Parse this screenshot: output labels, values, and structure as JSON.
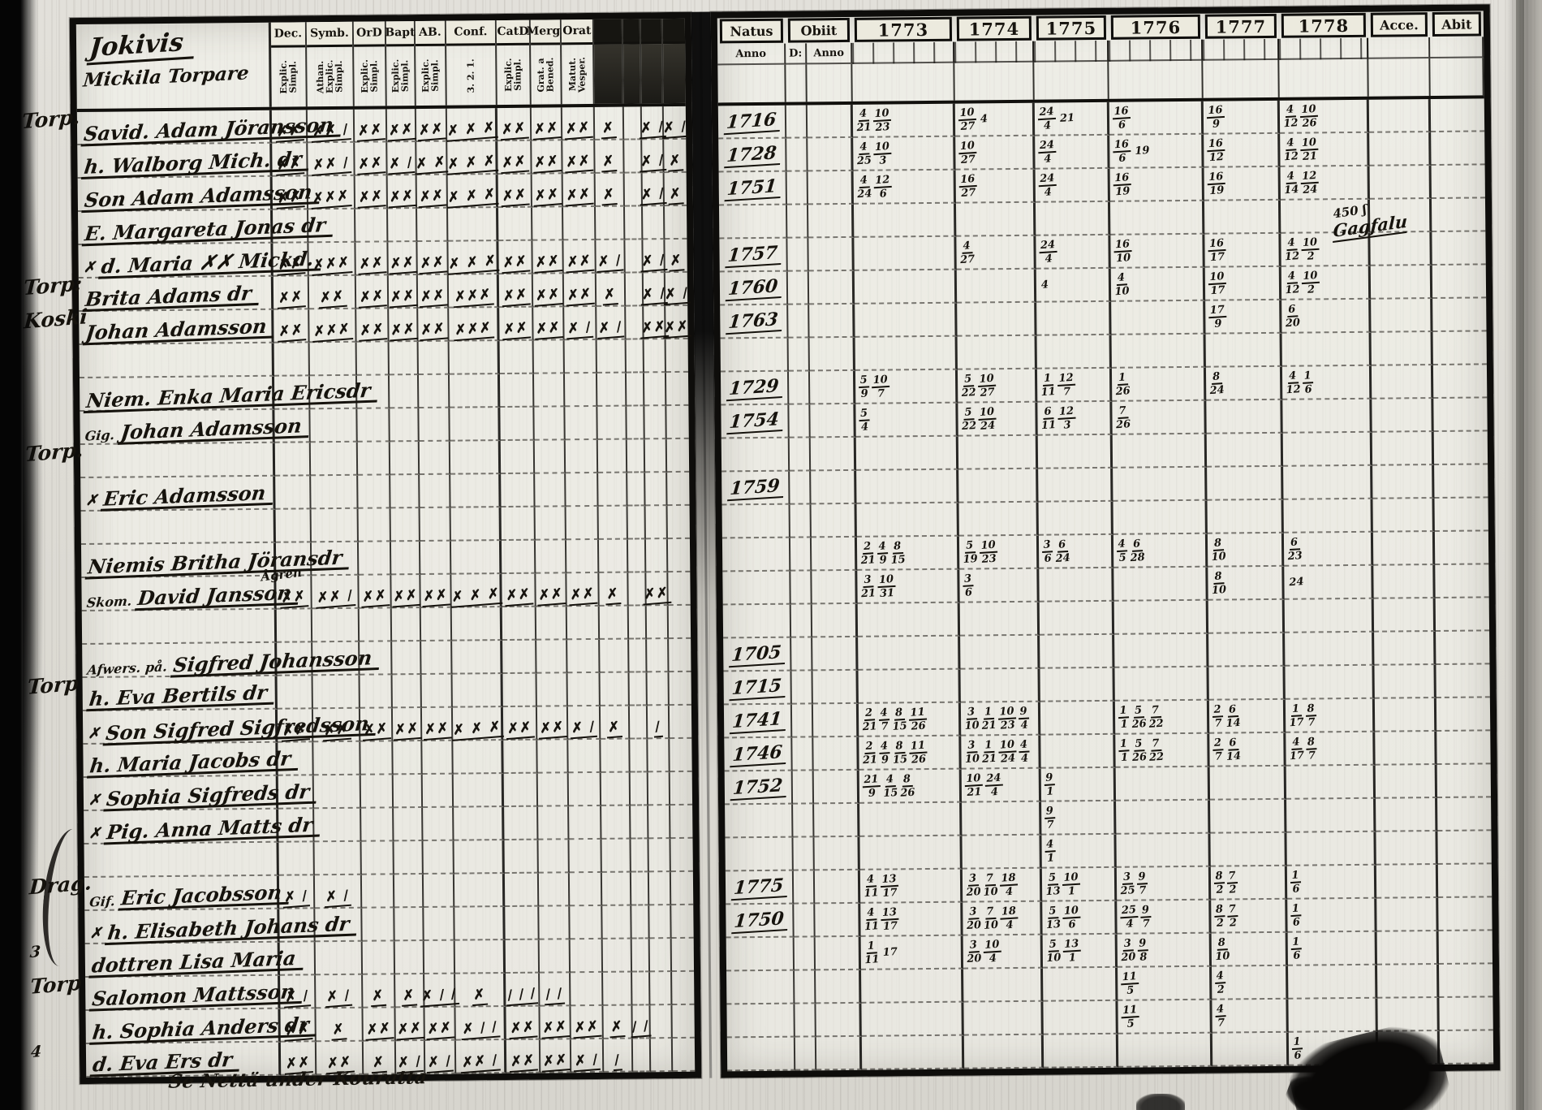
{
  "place_header": {
    "line1": "Jokivis",
    "line2": "Mickila Torpare"
  },
  "footer_note": "Se Nettä under Kouratta",
  "ink_color": "#15120c",
  "paper_color": "#dedcd5",
  "left_columns": [
    {
      "label": "Dec.",
      "sub": "Explic. Simpl."
    },
    {
      "label": "Symb.",
      "sub": "Athan. Explic. Simpl."
    },
    {
      "label": "OrD",
      "sub": "Explic. Simpl."
    },
    {
      "label": "Bapt",
      "sub": "Explic. Simpl."
    },
    {
      "label": "AB.",
      "sub": "Explic. Simpl."
    },
    {
      "label": "Conf.",
      "sub": "3. 2. 1."
    },
    {
      "label": "CatD",
      "sub": "Explic. Simpl."
    },
    {
      "label": "Merg.",
      "sub": "Grat. a Bened."
    },
    {
      "label": "Orat",
      "sub": "Matut. Vesper."
    },
    {
      "label": "",
      "sub": "",
      "blot": true
    },
    {
      "label": "",
      "sub": "",
      "blot": true
    },
    {
      "label": "",
      "sub": "",
      "blot": true
    },
    {
      "label": "",
      "sub": "",
      "blot": true
    }
  ],
  "right_columns": {
    "natus_label": "Natus",
    "natus_sub": "Anno",
    "obiit_label": "Obiit",
    "obiit_subs": [
      "D:",
      "Anno"
    ],
    "years": [
      "1773",
      "1774",
      "1775",
      "1776",
      "1777",
      "1778"
    ],
    "acce_label": "Acce.",
    "abit_label": "Abit"
  },
  "rows": [
    {
      "g": "Torp.",
      "n": "Savid. Adam Jöransson",
      "b": "1716",
      "m": [
        "✗✗",
        "✗✗ /",
        "✗✗",
        "✗✗",
        "✗✗",
        "✗ ✗ ✗",
        "✗✗",
        "✗✗",
        "✗✗",
        "✗",
        "",
        "✗ /",
        "✗ /"
      ],
      "y": [
        [
          "4/21",
          "10/23"
        ],
        [
          "10/27",
          "4"
        ],
        [
          "24/4",
          "21"
        ],
        [
          "16/6"
        ],
        [
          "16/9"
        ],
        [
          "4/12",
          "10/26"
        ]
      ]
    },
    {
      "n": "h. Walborg Mich. dr",
      "b": "1728",
      "m": [
        "✗✗",
        "✗✗ /",
        "✗✗",
        "✗ /",
        "✗ ✗",
        "✗ ✗ ✗",
        "✗✗",
        "✗✗",
        "✗✗",
        "✗",
        "",
        "✗ /",
        "✗"
      ],
      "y": [
        [
          "4/25",
          "10/3"
        ],
        [
          "10/27"
        ],
        [
          "24/4"
        ],
        [
          "16/6",
          "19"
        ],
        [
          "16/12"
        ],
        [
          "4/12",
          "10/21"
        ]
      ]
    },
    {
      "n": "Son Adam Adamsson",
      "b": "1751",
      "m": [
        "✗✗",
        "✗✗✗",
        "✗✗",
        "✗✗",
        "✗✗",
        "✗ ✗ ✗",
        "✗✗",
        "✗✗",
        "✗✗",
        "✗",
        "",
        "✗ /",
        "✗"
      ],
      "y": [
        [
          "4/24",
          "12/6"
        ],
        [
          "16/27"
        ],
        [
          "24/4"
        ],
        [
          "16/19"
        ],
        [
          "16/19"
        ],
        [
          "4/14",
          "12/24"
        ]
      ]
    },
    {
      "n": "E. Margareta Jonas dr",
      "m": [
        "",
        "",
        "",
        "",
        "",
        "",
        "",
        "",
        "",
        "",
        "",
        "",
        ""
      ],
      "y": [
        [],
        [],
        [],
        [],
        [],
        []
      ],
      "an": [
        "450 ʃ",
        "Gagfalu"
      ]
    },
    {
      "x": "✗",
      "n": "d. Maria ✗✗ Mickd.",
      "b": "1757",
      "m": [
        "✗✗",
        "✗✗✗",
        "✗✗",
        "✗✗",
        "✗✗",
        "✗ ✗ ✗",
        "✗✗",
        "✗✗",
        "✗✗",
        "✗ /",
        "",
        "✗ /",
        "✗"
      ],
      "y": [
        [],
        [
          "4/27"
        ],
        [
          "24/4"
        ],
        [
          "16/10"
        ],
        [
          "16/17"
        ],
        [
          "4/12",
          "10/2"
        ]
      ]
    },
    {
      "g": "Torp:",
      "n": "Brita Adams dr",
      "b": "1760",
      "m": [
        "✗✗",
        "✗✗",
        "✗✗",
        "✗✗",
        "✗✗",
        "✗✗✗",
        "✗✗",
        "✗✗",
        "✗✗",
        "✗",
        "",
        "✗ /",
        "✗ /"
      ],
      "y": [
        [],
        [],
        [
          "4"
        ],
        [
          "4/10"
        ],
        [
          "10/17"
        ],
        [
          "4/12",
          "10/2"
        ]
      ]
    },
    {
      "g": "Koski",
      "n": "Johan Adamsson",
      "b": "1763",
      "m": [
        "✗✗",
        "✗✗✗",
        "✗✗",
        "✗✗",
        "✗✗",
        "✗✗✗",
        "✗✗",
        "✗✗",
        "✗ /",
        "✗ /",
        "",
        "✗✗",
        "✗✗"
      ],
      "y": [
        [],
        [],
        [],
        [],
        [
          "17/9"
        ],
        [
          "6/20"
        ]
      ]
    },
    {},
    {
      "n": "Niem. Enka Maria Ericsdr",
      "b": "1729",
      "y": [
        [
          "5/9",
          "10/7"
        ],
        [
          "5/22",
          "10/27"
        ],
        [
          "1/11",
          "12/7"
        ],
        [
          "1/26"
        ],
        [
          "8/24"
        ],
        [
          "4/12",
          "1/6"
        ]
      ]
    },
    {
      "p": "Gig.",
      "n": "Johan Adamsson",
      "b": "1754",
      "y": [
        [
          "5/4"
        ],
        [
          "5/22",
          "10/24"
        ],
        [
          "6/11",
          "12/3"
        ],
        [
          "7/26"
        ],
        [],
        []
      ]
    },
    {
      "g": "Torp."
    },
    {
      "x": "✗",
      "n": "Eric Adamsson",
      "b": "1759"
    },
    {},
    {
      "n": "Niemis Britha Jöransdr",
      "y": [
        [
          "2/21",
          "4/9",
          "8/15"
        ],
        [
          "5/19",
          "10/23"
        ],
        [
          "3/6",
          "6/24"
        ],
        [
          "4/5",
          "6/28"
        ],
        [
          "8/10"
        ],
        [
          "6/23"
        ]
      ]
    },
    {
      "p": "Skom.",
      "s": "Ågren",
      "n": "David Jansson",
      "m": [
        "✗✗",
        "✗✗ /",
        "✗✗",
        "✗✗",
        "✗✗",
        "✗ ✗ ✗",
        "✗✗",
        "✗✗",
        "✗✗",
        "✗",
        "",
        "✗✗",
        ""
      ],
      "y": [
        [
          "3/21",
          "10/31"
        ],
        [
          "3/6"
        ],
        [],
        [],
        [
          "8/10"
        ],
        [
          "24"
        ]
      ]
    },
    {},
    {
      "p": "Afwers. på.",
      "n": "Sigfred Johansson",
      "b": "1705"
    },
    {
      "g": "Torp",
      "n": "h. Eva Bertils dr",
      "b": "1715"
    },
    {
      "x": "✗",
      "n": "Son Sigfred Sigfredsson",
      "b": "1741",
      "m": [
        "✗✗",
        "✗✗",
        "✗✗",
        "✗✗",
        "✗✗",
        "✗ ✗ ✗",
        "✗✗",
        "✗✗",
        "✗ /",
        "✗",
        "",
        "/",
        ""
      ],
      "y": [
        [
          "2/21",
          "4/7",
          "8/15",
          "11/26"
        ],
        [
          "3/10",
          "1/21",
          "10/23",
          "9/4"
        ],
        [],
        [
          "1/1",
          "5/26",
          "7/22"
        ],
        [
          "2/7",
          "6/14"
        ],
        [
          "1/17",
          "8/7"
        ]
      ]
    },
    {
      "n": "h. Maria Jacobs dr",
      "b": "1746",
      "y": [
        [
          "2/21",
          "4/9",
          "8/15",
          "11/26"
        ],
        [
          "3/10",
          "1/21",
          "10/24",
          "4/4"
        ],
        [],
        [
          "1/1",
          "5/26",
          "7/22"
        ],
        [
          "2/7",
          "6/14"
        ],
        [
          "4/17",
          "8/7"
        ]
      ]
    },
    {
      "x": "✗",
      "n": "Sophia Sigfreds dr",
      "b": "1752",
      "y": [
        [
          "21/9",
          "4/15",
          "8/26"
        ],
        [
          "10/21",
          "24/4"
        ],
        [
          "9/1"
        ],
        [],
        [],
        []
      ]
    },
    {
      "x": "✗",
      "n": "Pig. Anna Matts dr",
      "y": [
        [],
        [],
        [
          "9/7"
        ],
        [],
        [],
        []
      ]
    },
    {
      "y": [
        [],
        [],
        [
          "4/1"
        ],
        [],
        [],
        []
      ]
    },
    {
      "g": "Drag.",
      "p": "Gif.",
      "n": "Eric Jacobsson",
      "b": "1775",
      "m": [
        "✗ /",
        "✗ /",
        "",
        "",
        "",
        "",
        "",
        "",
        "",
        "",
        "",
        "",
        ""
      ],
      "y": [
        [
          "4/11",
          "13/17"
        ],
        [
          "3/20",
          "7/10",
          "18/4"
        ],
        [
          "5/13",
          "10/1"
        ],
        [
          "3/25",
          "9/7"
        ],
        [
          "8/2",
          "7/2"
        ],
        [
          "1/6"
        ]
      ]
    },
    {
      "x": "✗",
      "n": "h. Elisabeth Johans dr",
      "b": "1750",
      "y": [
        [
          "4/11",
          "13/17"
        ],
        [
          "3/20",
          "7/10",
          "18/4"
        ],
        [
          "5/13",
          "10/6"
        ],
        [
          "25/4",
          "9/7"
        ],
        [
          "8/2",
          "7/2"
        ],
        [
          "1/6"
        ]
      ]
    },
    {
      "g": "3",
      "n": "dottren Lisa Maria",
      "y": [
        [
          "1/11",
          "17"
        ],
        [
          "3/20",
          "10/4"
        ],
        [
          "5/10",
          "13/1"
        ],
        [
          "3/20",
          "9/8"
        ],
        [
          "8/10"
        ],
        [
          "1/6"
        ]
      ]
    },
    {
      "g": "Torp",
      "n": "Salomon Mattsson",
      "m": [
        "✗ /",
        "✗ /",
        "✗",
        "✗",
        "✗ / /",
        "✗",
        "/ / /",
        "/ /",
        "",
        "",
        "",
        "",
        ""
      ],
      "y": [
        [],
        [],
        [],
        [
          "11/5"
        ],
        [
          "4/2"
        ],
        []
      ]
    },
    {
      "n": "h. Sophia Anders dr",
      "m": [
        "✗✗",
        "✗",
        "✗✗",
        "✗✗",
        "✗✗",
        "✗ / /",
        "✗✗",
        "✗✗",
        "✗✗",
        "✗",
        "/ /",
        "",
        ""
      ],
      "y": [
        [],
        [],
        [],
        [
          "11/5"
        ],
        [
          "4/7"
        ],
        []
      ]
    },
    {
      "g": "4",
      "n": "d. Eva Ers dr",
      "m": [
        "✗✗",
        "✗✗",
        "✗",
        "✗ /",
        "✗ /",
        "✗✗ /",
        "✗✗",
        "✗✗",
        "✗ /",
        "/",
        "",
        "",
        ""
      ],
      "y": [
        [],
        [],
        [],
        [],
        [],
        [
          "1/6"
        ]
      ]
    }
  ]
}
